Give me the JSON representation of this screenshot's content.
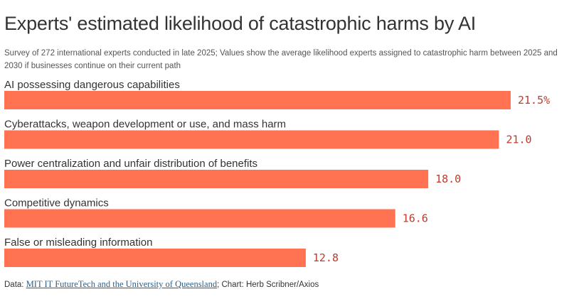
{
  "header": {
    "title": "Experts' estimated likelihood of catastrophic harms by AI",
    "subtitle": "Survey of 272 international experts conducted in late 2025; Values show the average likelihood experts assigned to catastrophic harm between 2025 and 2030 if businesses continue on their current path"
  },
  "footer": {
    "data_prefix": "Data: ",
    "source_link": "MIT IT FutureTech and the University of Queensland",
    "credit": "; Chart: Herb Scribner/Axios"
  },
  "colors": {
    "bar": "#FF7352",
    "value_label": "#c0392b",
    "text": "#333333"
  },
  "chart_data": {
    "type": "bar",
    "orientation": "horizontal",
    "title": "Experts' estimated likelihood of catastrophic harms by AI",
    "categories": [
      "AI possessing dangerous capabilities",
      "Cyberattacks, weapon development or use, and mass harm",
      "Power centralization and unfair distribution of benefits",
      "Competitive dynamics",
      "False or misleading information"
    ],
    "values": [
      21.5,
      21.0,
      18.0,
      16.6,
      12.8
    ],
    "value_labels": [
      "21.5%",
      "21.0",
      "18.0",
      "16.6",
      "12.8"
    ],
    "unit": "%",
    "xlim": [
      0,
      21.5
    ],
    "grid": false,
    "legend": "none"
  }
}
